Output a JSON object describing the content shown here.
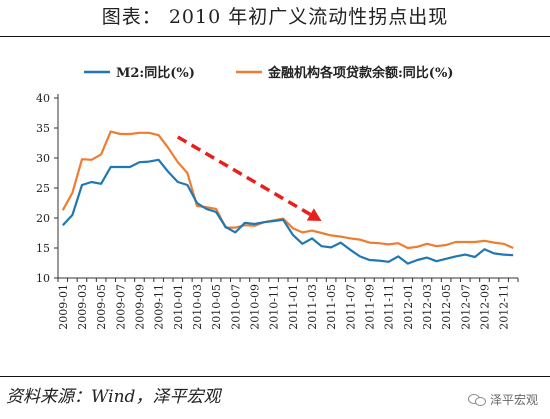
{
  "header": {
    "title": "图表： 2010 年初广义流动性拐点出现"
  },
  "footer": {
    "source": "资料来源：Wind，泽平宏观",
    "watermark": "泽平宏观"
  },
  "chart_data": {
    "type": "line",
    "title": "图表： 2010 年初广义流动性拐点出现",
    "ylim": [
      10,
      40
    ],
    "yticks": [
      10,
      15,
      20,
      25,
      30,
      35,
      40
    ],
    "x_labels": [
      "2009-01",
      "2009-03",
      "2009-05",
      "2009-07",
      "2009-09",
      "2009-11",
      "2010-01",
      "2010-03",
      "2010-05",
      "2010-07",
      "2010-09",
      "2010-11",
      "2011-01",
      "2011-03",
      "2011-05",
      "2011-07",
      "2011-09",
      "2011-11",
      "2012-01",
      "2012-03",
      "2012-05",
      "2012-07",
      "2012-09",
      "2012-11"
    ],
    "x": [
      "2009-01",
      "2009-02",
      "2009-03",
      "2009-04",
      "2009-05",
      "2009-06",
      "2009-07",
      "2009-08",
      "2009-09",
      "2009-10",
      "2009-11",
      "2009-12",
      "2010-01",
      "2010-02",
      "2010-03",
      "2010-04",
      "2010-05",
      "2010-06",
      "2010-07",
      "2010-08",
      "2010-09",
      "2010-10",
      "2010-11",
      "2010-12",
      "2011-01",
      "2011-02",
      "2011-03",
      "2011-04",
      "2011-05",
      "2011-06",
      "2011-07",
      "2011-08",
      "2011-09",
      "2011-10",
      "2011-11",
      "2011-12",
      "2012-01",
      "2012-02",
      "2012-03",
      "2012-04",
      "2012-05",
      "2012-06",
      "2012-07",
      "2012-08",
      "2012-09",
      "2012-10",
      "2012-11",
      "2012-12"
    ],
    "series": [
      {
        "name": "M2:同比(%)",
        "color": "#1f77b4",
        "values": [
          18.8,
          20.5,
          25.5,
          26.0,
          25.7,
          28.5,
          28.5,
          28.5,
          29.3,
          29.4,
          29.7,
          27.7,
          26.0,
          25.5,
          22.5,
          21.5,
          21.0,
          18.5,
          17.6,
          19.2,
          19.0,
          19.3,
          19.5,
          19.7,
          17.2,
          15.7,
          16.6,
          15.3,
          15.1,
          15.9,
          14.7,
          13.6,
          13.0,
          12.9,
          12.7,
          13.6,
          12.4,
          13.0,
          13.4,
          12.8,
          13.2,
          13.6,
          13.9,
          13.5,
          14.8,
          14.1,
          13.9,
          13.8
        ]
      },
      {
        "name": "金融机构各项贷款余额:同比(%)",
        "color": "#ed7d31",
        "values": [
          21.3,
          24.2,
          29.8,
          29.7,
          30.6,
          34.4,
          34.0,
          34.0,
          34.2,
          34.2,
          33.8,
          31.7,
          29.3,
          27.5,
          22.0,
          21.8,
          21.5,
          18.4,
          18.4,
          18.8,
          18.7,
          19.3,
          19.6,
          19.9,
          18.3,
          17.6,
          17.9,
          17.5,
          17.1,
          16.9,
          16.6,
          16.4,
          15.9,
          15.8,
          15.6,
          15.8,
          15.0,
          15.2,
          15.7,
          15.3,
          15.5,
          16.0,
          16.0,
          16.0,
          16.2,
          15.9,
          15.7,
          15.0
        ]
      }
    ],
    "annotation": {
      "type": "arrow",
      "style": "dashed",
      "color": "#e8201a",
      "from": {
        "x": "2010-01",
        "y": 33.5
      },
      "to": {
        "x": "2011-04",
        "y": 19.5
      }
    },
    "legend_position": "top",
    "grid": false
  }
}
